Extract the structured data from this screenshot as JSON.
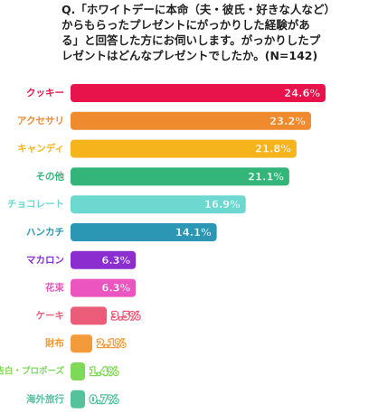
{
  "chart_data": {
    "type": "bar",
    "orientation": "horizontal",
    "title": [
      "Q.「ホワイトデーに本命（夫・彼氏・好きな人など）",
      "からもらったプレゼントにがっかりした経験があ",
      "る」と回答した方にお伺いします。がっかりしたプ",
      "レゼントはどんなプレゼントでしたか。(N=142)"
    ],
    "categories": [
      "クッキー",
      "アクセサリ",
      "キャンディ",
      "その他",
      "チョコレート",
      "ハンカチ",
      "マカロン",
      "花束",
      "ケーキ",
      "財布",
      "告白・プロポーズ",
      "海外旅行"
    ],
    "values": [
      24.6,
      23.2,
      21.8,
      21.1,
      16.9,
      14.1,
      6.3,
      6.3,
      3.5,
      2.1,
      1.4,
      0.7
    ],
    "value_labels": [
      "24.6%",
      "23.2%",
      "21.8%",
      "21.1%",
      "16.9%",
      "14.1%",
      "6.3%",
      "6.3%",
      "3.5%",
      "2.1%",
      "1.4%",
      "0.7%"
    ],
    "colors": [
      "#e8134b",
      "#f08a2e",
      "#f5b31c",
      "#33b57a",
      "#6cd8d0",
      "#2b97b5",
      "#8c2ecf",
      "#ea55c0",
      "#ea5c78",
      "#f39b3b",
      "#7ed957",
      "#54c39c"
    ],
    "xlim": [
      0,
      24.6
    ],
    "grid": false,
    "legend": "none"
  }
}
